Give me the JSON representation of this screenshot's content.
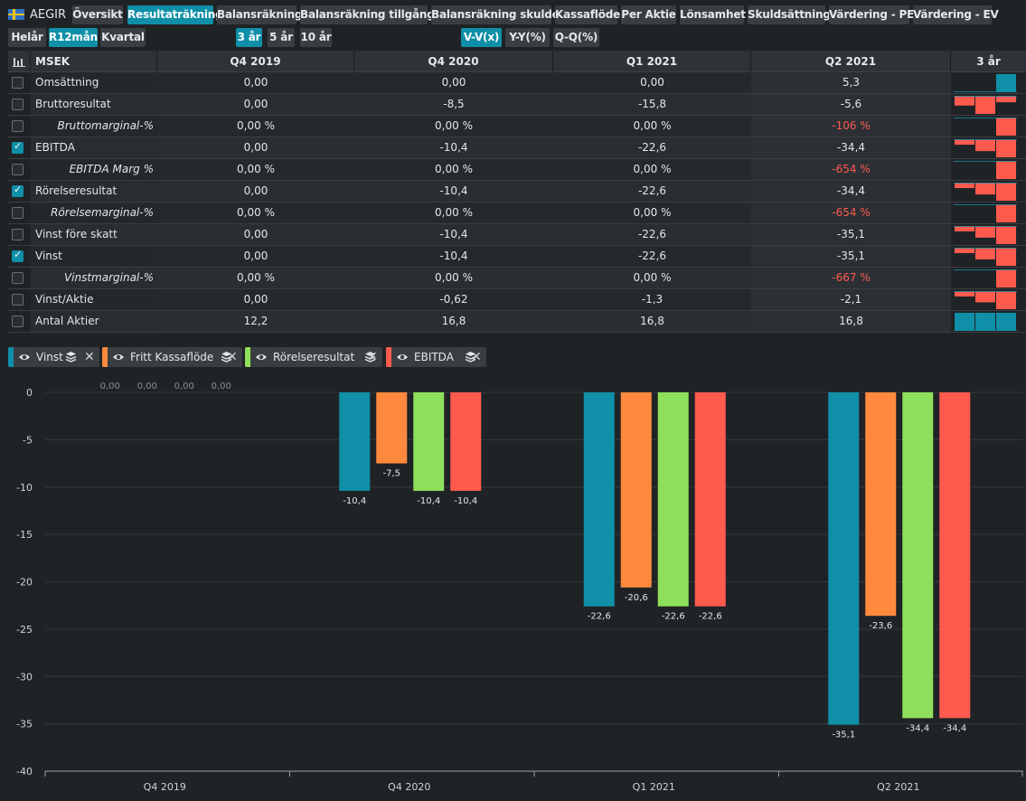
{
  "app": {
    "ticker": "AEGIR"
  },
  "tabs": [
    "Översikt",
    "Resultaträkning",
    "Balansräkning",
    "Balansräkning tillgångar",
    "Balansräkning skulder",
    "Kassaflöde",
    "Per Aktie",
    "Lönsamhet",
    "Skuldsättning",
    "Värdering - PE",
    "Värdering - EV"
  ],
  "active_tab": "Resultaträkning",
  "period_buttons": [
    "Helår",
    "R12mån",
    "Kvartal"
  ],
  "active_period": "R12mån",
  "range_buttons": [
    "3 år",
    "5 år",
    "10 år"
  ],
  "active_range": "3 år",
  "change_buttons": [
    "V-V(x)",
    "Y-Y(%)",
    "Q-Q(%)"
  ],
  "active_change": "V-V(x)",
  "table": {
    "unit": "MSEK",
    "columns": [
      "Q4 2019",
      "Q4 2020",
      "Q1 2021",
      "Q2 2021"
    ],
    "spark_header": "3 år",
    "rows": [
      {
        "label": "Omsättning",
        "italic": false,
        "checked": false,
        "values": [
          "0,00",
          "0,00",
          "0,00",
          "5,3"
        ],
        "neg_last": false,
        "spark": [
          0,
          0,
          0,
          5.3
        ],
        "spark_color": "#0f8fa8"
      },
      {
        "label": "Bruttoresultat",
        "italic": false,
        "checked": false,
        "values": [
          "0,00",
          "-8,5",
          "-15,8",
          "-5,6"
        ],
        "neg_last": false,
        "spark": [
          0,
          -8.5,
          -15.8,
          -5.6
        ],
        "spark_color": "#ff5a4e"
      },
      {
        "label": "Bruttomarginal-%",
        "italic": true,
        "checked": false,
        "values": [
          "0,00 %",
          "0,00 %",
          "0,00 %",
          "-106 %"
        ],
        "neg_last": true,
        "spark": [
          0,
          0,
          0,
          -106
        ],
        "spark_color": "#ff5a4e"
      },
      {
        "label": "EBITDA",
        "italic": false,
        "checked": true,
        "values": [
          "0,00",
          "-10,4",
          "-22,6",
          "-34,4"
        ],
        "neg_last": false,
        "spark": [
          0,
          -10.4,
          -22.6,
          -34.4
        ],
        "spark_color": "#ff5a4e"
      },
      {
        "label": "EBITDA Marg %",
        "italic": true,
        "checked": false,
        "values": [
          "0,00 %",
          "0,00 %",
          "0,00 %",
          "-654 %"
        ],
        "neg_last": true,
        "spark": [
          0,
          0,
          0,
          -654
        ],
        "spark_color": "#ff5a4e"
      },
      {
        "label": "Rörelseresultat",
        "italic": false,
        "checked": true,
        "values": [
          "0,00",
          "-10,4",
          "-22,6",
          "-34,4"
        ],
        "neg_last": false,
        "spark": [
          0,
          -10.4,
          -22.6,
          -34.4
        ],
        "spark_color": "#ff5a4e"
      },
      {
        "label": "Rörelsemarginal-%",
        "italic": true,
        "checked": false,
        "values": [
          "0,00 %",
          "0,00 %",
          "0,00 %",
          "-654 %"
        ],
        "neg_last": true,
        "spark": [
          0,
          0,
          0,
          -654
        ],
        "spark_color": "#ff5a4e"
      },
      {
        "label": "Vinst före skatt",
        "italic": false,
        "checked": false,
        "values": [
          "0,00",
          "-10,4",
          "-22,6",
          "-35,1"
        ],
        "neg_last": false,
        "spark": [
          0,
          -10.4,
          -22.6,
          -35.1
        ],
        "spark_color": "#ff5a4e"
      },
      {
        "label": "Vinst",
        "italic": false,
        "checked": true,
        "values": [
          "0,00",
          "-10,4",
          "-22,6",
          "-35,1"
        ],
        "neg_last": false,
        "spark": [
          0,
          -10.4,
          -22.6,
          -35.1
        ],
        "spark_color": "#ff5a4e"
      },
      {
        "label": "Vinstmarginal-%",
        "italic": true,
        "checked": false,
        "values": [
          "0,00 %",
          "0,00 %",
          "0,00 %",
          "-667 %"
        ],
        "neg_last": true,
        "spark": [
          0,
          0,
          0,
          -667
        ],
        "spark_color": "#ff5a4e"
      },
      {
        "label": "Vinst/Aktie",
        "italic": false,
        "checked": false,
        "values": [
          "0,00",
          "-0,62",
          "-1,3",
          "-2,1"
        ],
        "neg_last": false,
        "spark": [
          0,
          -0.62,
          -1.3,
          -2.1
        ],
        "spark_color": "#ff5a4e"
      },
      {
        "label": "Antal Aktier",
        "italic": false,
        "checked": false,
        "values": [
          "12,2",
          "16,8",
          "16,8",
          "16,8"
        ],
        "neg_last": false,
        "spark": [
          12.2,
          16.8,
          16.8,
          16.8
        ],
        "spark_color": "#0f8fa8"
      }
    ]
  },
  "legend": [
    {
      "name": "Vinst",
      "color": "#0f8fa8"
    },
    {
      "name": "Fritt Kassaflöde",
      "color": "#ff8a3d"
    },
    {
      "name": "Rörelseresultat",
      "color": "#8ee05a"
    },
    {
      "name": "EBITDA",
      "color": "#ff5a4e"
    }
  ],
  "colors": {
    "accent": "#0f8fa8",
    "negative": "#ff5a4e"
  },
  "chart_data": {
    "type": "bar",
    "categories": [
      "Q4 2019",
      "Q4 2020",
      "Q1 2021",
      "Q2 2021"
    ],
    "series": [
      {
        "name": "Vinst",
        "color": "#0f8fa8",
        "values": [
          0,
          -10.4,
          -22.6,
          -35.1
        ],
        "labels": [
          "0,00",
          "-10,4",
          "-22,6",
          "-35,1"
        ]
      },
      {
        "name": "Fritt Kassaflöde",
        "color": "#ff8a3d",
        "values": [
          0,
          -7.5,
          -20.6,
          -23.6
        ],
        "labels": [
          "0,00",
          "-7,5",
          "-20,6",
          "-23,6"
        ]
      },
      {
        "name": "Rörelseresultat",
        "color": "#8ee05a",
        "values": [
          0,
          -10.4,
          -22.6,
          -34.4
        ],
        "labels": [
          "0,00",
          "-10,4",
          "-22,6",
          "-34,4"
        ]
      },
      {
        "name": "EBITDA",
        "color": "#ff5a4e",
        "values": [
          0,
          -10.4,
          -22.6,
          -34.4
        ],
        "labels": [
          "0,00",
          "-10,4",
          "-22,6",
          "-34,4"
        ]
      }
    ],
    "yticks": [
      "0",
      "-5",
      "-10",
      "-15",
      "-20",
      "-25",
      "-30",
      "-35",
      "-40"
    ],
    "ylim": [
      -40,
      0
    ],
    "title": "",
    "xlabel": "",
    "ylabel": ""
  }
}
